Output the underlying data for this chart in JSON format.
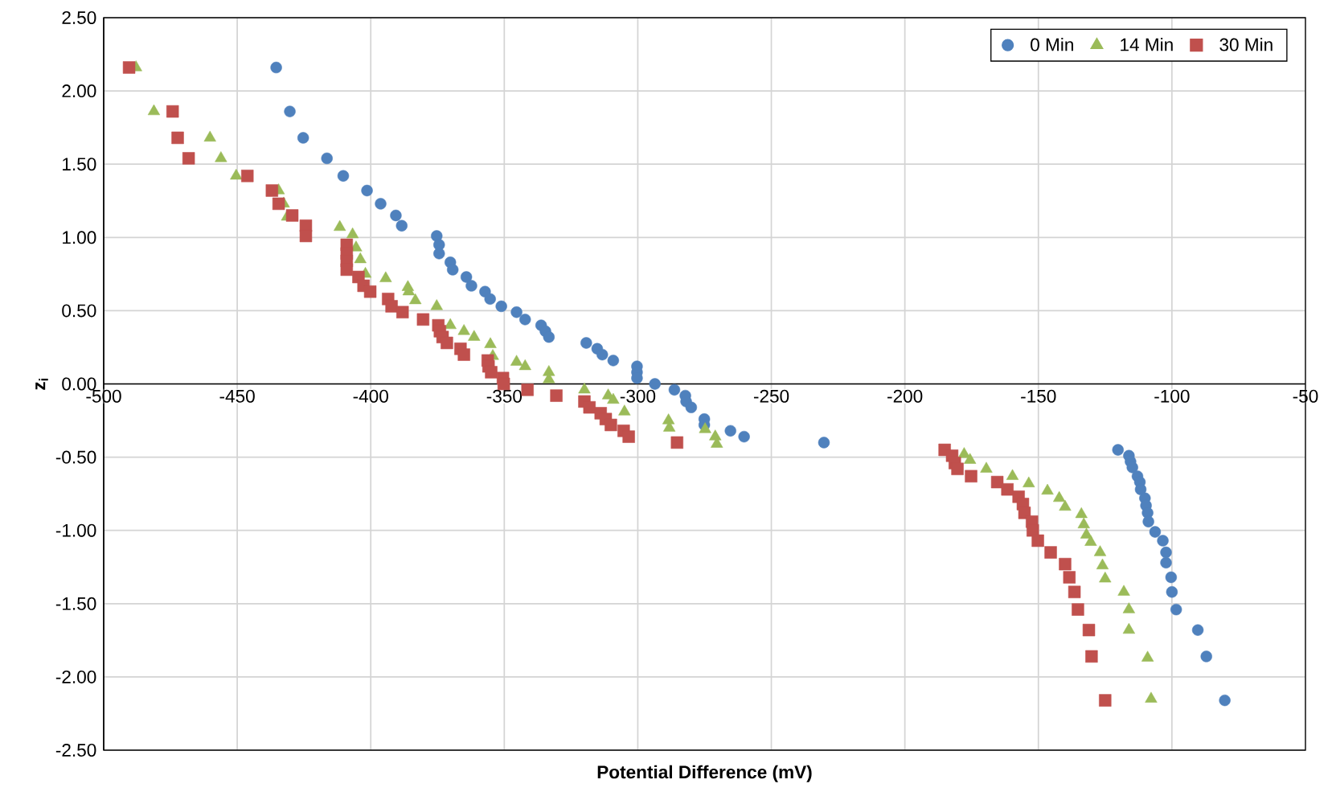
{
  "chart_data": {
    "type": "scatter",
    "xlabel": "Potential Difference (mV)",
    "ylabel": "z$_{i}$",
    "xlim": [
      -500,
      -50
    ],
    "ylim": [
      -2.5,
      2.5
    ],
    "xticks": [
      -500,
      -450,
      -400,
      -350,
      -300,
      -250,
      -200,
      -150,
      -100,
      -50
    ],
    "yticks": [
      {
        "value": -2.5,
        "label": "-2.50"
      },
      {
        "value": -2,
        "label": "-2.00"
      },
      {
        "value": -1.5,
        "label": "-1.50"
      },
      {
        "value": -1,
        "label": "-1.00"
      },
      {
        "value": -0.5,
        "label": "-0.50"
      },
      {
        "value": 0,
        "label": "0.00"
      },
      {
        "value": 0.5,
        "label": "0.50"
      },
      {
        "value": 1,
        "label": "1.00"
      },
      {
        "value": 1.5,
        "label": "1.50"
      },
      {
        "value": 2,
        "label": "2.00"
      },
      {
        "value": 2.5,
        "label": "2.50"
      }
    ],
    "grid": true,
    "legend": "top right",
    "series": [
      {
        "name": "0 Min",
        "color": "#4f81bd",
        "marker": "circle",
        "x": [
          -435.4,
          -430.3,
          -425.3,
          -416.4,
          -410.3,
          -401.4,
          -396.3,
          -390.6,
          -388.4,
          -375.3,
          -374.4,
          -374.4,
          -370.2,
          -369.3,
          -364.2,
          -362.3,
          -357.2,
          -355.3,
          -351.1,
          -345.4,
          -342.2,
          -336.2,
          -334.6,
          -333.3,
          -319.3,
          -315.2,
          -313.3,
          -309.2,
          -300.3,
          -300.3,
          -300.3,
          -293.6,
          -286.3,
          -282.2,
          -281.9,
          -280,
          -275.1,
          -275.1,
          -265.3,
          -260.2,
          -230.3,
          -120.2,
          -116.1,
          -115.5,
          -114.8,
          -112.9,
          -112,
          -111.7,
          -110.1,
          -109.7,
          -109.1,
          -108.8,
          -106.3,
          -103.4,
          -102.2,
          -102.2,
          -100.3,
          -100,
          -98.4,
          -90.3,
          -87.1,
          -80.2
        ],
        "values": [
          2.16,
          1.86,
          1.68,
          1.54,
          1.42,
          1.32,
          1.23,
          1.15,
          1.08,
          1.01,
          0.95,
          0.89,
          0.83,
          0.78,
          0.73,
          0.67,
          0.63,
          0.58,
          0.53,
          0.49,
          0.44,
          0.4,
          0.36,
          0.32,
          0.28,
          0.24,
          0.2,
          0.16,
          0.12,
          0.08,
          0.04,
          0.0,
          -0.04,
          -0.08,
          -0.12,
          -0.16,
          -0.24,
          -0.28,
          -0.32,
          -0.36,
          -0.4,
          -0.45,
          -0.49,
          -0.53,
          -0.57,
          -0.63,
          -0.67,
          -0.72,
          -0.78,
          -0.83,
          -0.88,
          -0.94,
          -1.01,
          -1.07,
          -1.15,
          -1.22,
          -1.32,
          -1.42,
          -1.54,
          -1.68,
          -1.86,
          -2.16
        ]
      },
      {
        "name": "14 Min",
        "color": "#9bbb59",
        "marker": "triangle",
        "x": [
          -487.9,
          -481.2,
          -460.2,
          -456.1,
          -450.4,
          -434.5,
          -432.6,
          -431.3,
          -411.6,
          -406.8,
          -405.5,
          -403.9,
          -402,
          -394.4,
          -386.1,
          -385.8,
          -383.3,
          -375.3,
          -370.2,
          -365.1,
          -361.3,
          -355.2,
          -354.3,
          -345.4,
          -342.2,
          -333.3,
          -333.3,
          -320,
          -311.1,
          -309.2,
          -305,
          -288.5,
          -288.2,
          -274.8,
          -271,
          -270.4,
          -177.8,
          -175.6,
          -169.5,
          -159.7,
          -153.6,
          -146.6,
          -142.2,
          -140,
          -133.9,
          -133,
          -132,
          -130.4,
          -126.9,
          -126,
          -125,
          -118,
          -116.1,
          -116.1,
          -109.1,
          -107.8
        ],
        "values": [
          2.16,
          1.86,
          1.68,
          1.54,
          1.42,
          1.32,
          1.23,
          1.14,
          1.07,
          1.02,
          0.93,
          0.85,
          0.75,
          0.72,
          0.66,
          0.63,
          0.57,
          0.53,
          0.4,
          0.36,
          0.32,
          0.27,
          0.19,
          0.15,
          0.12,
          0.08,
          0.03,
          -0.04,
          -0.08,
          -0.11,
          -0.19,
          -0.25,
          -0.3,
          -0.31,
          -0.36,
          -0.41,
          -0.48,
          -0.52,
          -0.58,
          -0.63,
          -0.68,
          -0.73,
          -0.78,
          -0.84,
          -0.89,
          -0.96,
          -1.03,
          -1.08,
          -1.15,
          -1.24,
          -1.33,
          -1.42,
          -1.54,
          -1.68,
          -1.87,
          -2.15
        ]
      },
      {
        "name": "30 Min",
        "color": "#c0504d",
        "marker": "square",
        "x": [
          -490.5,
          -474.2,
          -472.3,
          -468.2,
          -446.2,
          -437,
          -434.5,
          -429.4,
          -424.3,
          -424.3,
          -409,
          -409,
          -409,
          -409,
          -404.6,
          -402.7,
          -400.2,
          -393.5,
          -392.2,
          -388.1,
          -380.4,
          -374.7,
          -374.1,
          -373.1,
          -371.5,
          -366.4,
          -365.1,
          -356.2,
          -355.9,
          -354.9,
          -350.5,
          -350.2,
          -341.3,
          -330.5,
          -320,
          -318.1,
          -313.9,
          -312,
          -310.1,
          -305.3,
          -303.4,
          -285.3,
          -185.1,
          -182.3,
          -181.3,
          -180.3,
          -175.2,
          -165.4,
          -161.6,
          -157.4,
          -155.8,
          -155.2,
          -152.4,
          -152.1,
          -150.2,
          -145.4,
          -140,
          -138.4,
          -136.5,
          -135.2,
          -131.1,
          -130.1,
          -125
        ],
        "values": [
          2.16,
          1.86,
          1.68,
          1.54,
          1.42,
          1.32,
          1.23,
          1.15,
          1.08,
          1.01,
          0.95,
          0.89,
          0.84,
          0.78,
          0.73,
          0.67,
          0.63,
          0.58,
          0.53,
          0.49,
          0.44,
          0.4,
          0.36,
          0.32,
          0.28,
          0.24,
          0.2,
          0.16,
          0.12,
          0.08,
          0.04,
          0.0,
          -0.04,
          -0.08,
          -0.12,
          -0.16,
          -0.2,
          -0.24,
          -0.28,
          -0.32,
          -0.36,
          -0.4,
          -0.45,
          -0.49,
          -0.54,
          -0.58,
          -0.63,
          -0.67,
          -0.72,
          -0.77,
          -0.82,
          -0.88,
          -0.94,
          -1.0,
          -1.07,
          -1.15,
          -1.23,
          -1.32,
          -1.42,
          -1.54,
          -1.68,
          -1.86,
          -2.16
        ]
      }
    ]
  }
}
